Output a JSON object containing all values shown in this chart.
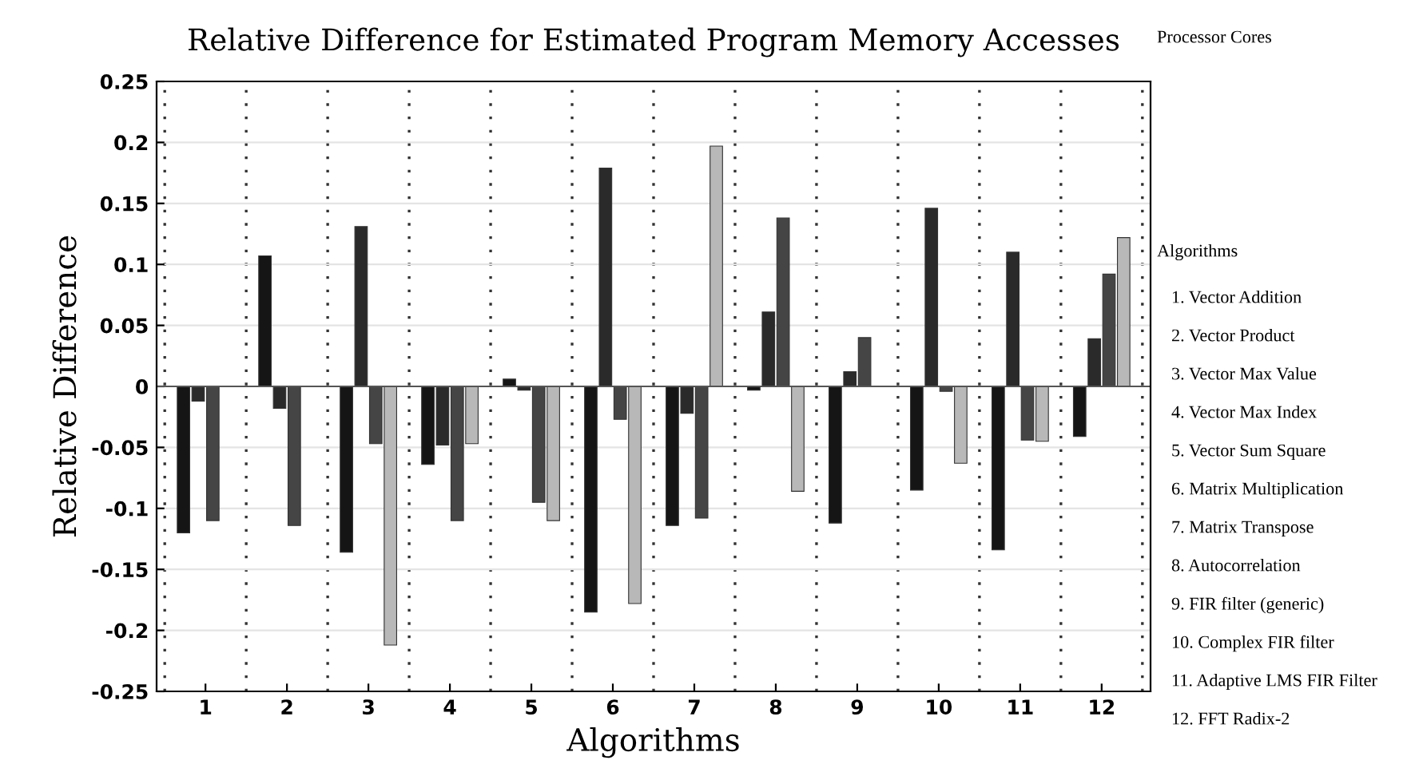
{
  "chart_data": {
    "type": "bar",
    "title": "Relative Difference for Estimated Program Memory Accesses",
    "xlabel": "Algorithms",
    "ylabel": "Relative Difference",
    "categories": [
      "1",
      "2",
      "3",
      "4",
      "5",
      "6",
      "7",
      "8",
      "9",
      "10",
      "11",
      "12"
    ],
    "series": [
      {
        "color": "#151515",
        "values": [
          -0.12,
          0.107,
          -0.136,
          -0.064,
          0.006,
          -0.185,
          -0.114,
          -0.003,
          -0.112,
          -0.085,
          -0.134,
          -0.041
        ]
      },
      {
        "color": "#2a2a2a",
        "values": [
          -0.012,
          -0.018,
          0.131,
          -0.048,
          -0.003,
          0.179,
          -0.022,
          0.061,
          0.012,
          0.146,
          0.11,
          0.039
        ]
      },
      {
        "color": "#454545",
        "values": [
          -0.11,
          -0.114,
          -0.047,
          -0.11,
          -0.095,
          -0.027,
          -0.108,
          0.138,
          0.04,
          -0.004,
          -0.044,
          0.092
        ]
      },
      {
        "color": "#b8b8b8",
        "values": [
          null,
          null,
          -0.212,
          -0.047,
          -0.11,
          -0.178,
          0.197,
          -0.086,
          null,
          -0.063,
          -0.045,
          0.122
        ]
      }
    ],
    "ylim": [
      -0.25,
      0.25
    ],
    "yticks": [
      -0.25,
      -0.2,
      -0.15,
      -0.1,
      -0.05,
      0,
      0.05,
      0.1,
      0.15,
      0.2,
      0.25
    ],
    "grid": true,
    "annotations": [
      "Processor Cores",
      "Algorithms",
      "1. Vector Addition",
      "2. Vector Product",
      "3. Vector Max Value",
      "4. Vector Max Index",
      "5. Vector Sum Square",
      "6. Matrix Multiplication",
      "7. Matrix Transpose",
      "8. Autocorrelation",
      "9. FIR filter (generic)",
      "10. Complex FIR filter",
      "11. Adaptive LMS FIR Filter",
      "12. FFT Radix-2"
    ]
  }
}
